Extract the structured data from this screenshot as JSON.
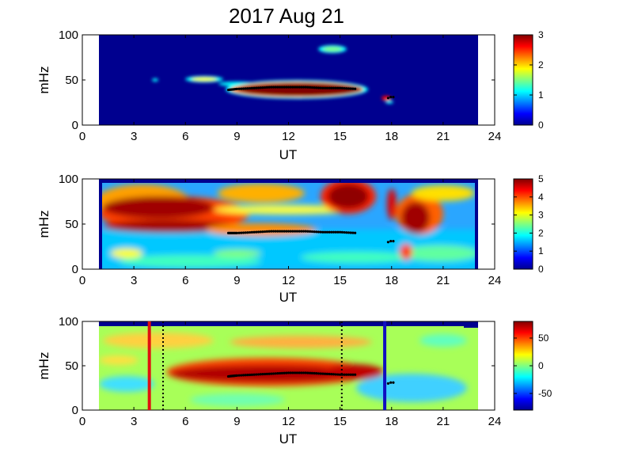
{
  "title": "2017 Aug 21",
  "colormap": [
    "#00008f",
    "#0000ff",
    "#0080ff",
    "#00ffff",
    "#80ff80",
    "#ffff00",
    "#ff8000",
    "#ff0000",
    "#800000"
  ],
  "chart_data": [
    {
      "type": "heatmap",
      "panel": "top",
      "xlabel": "UT",
      "ylabel": "mHz",
      "xlim": [
        0,
        24
      ],
      "ylim": [
        0,
        100
      ],
      "xticks": [
        "0",
        "3",
        "6",
        "9",
        "12",
        "15",
        "18",
        "21",
        "24"
      ],
      "yticks": [
        "0",
        "50",
        "100"
      ],
      "data_range_ut": [
        1,
        23
      ],
      "colorbar": {
        "min": 0,
        "max": 3,
        "ticks": [
          "0",
          "1",
          "2",
          "3"
        ]
      },
      "features": [
        {
          "ut": [
            8.5,
            16
          ],
          "freq": [
            35,
            45
          ],
          "level": "high"
        },
        {
          "ut": [
            6,
            8.5
          ],
          "freq": [
            48,
            55
          ],
          "level": "medium"
        },
        {
          "ut": [
            13.2,
            15
          ],
          "freq": [
            83,
            90
          ],
          "level": "medium"
        }
      ],
      "tracked_peak": {
        "ut": [
          8.5,
          9,
          10,
          11,
          12,
          13,
          14,
          15,
          16
        ],
        "freq": [
          39,
          40,
          41,
          42,
          42,
          42,
          41,
          41,
          40
        ]
      }
    },
    {
      "type": "heatmap",
      "panel": "middle",
      "xlabel": "UT",
      "ylabel": "mHz",
      "xlim": [
        0,
        24
      ],
      "ylim": [
        0,
        100
      ],
      "xticks": [
        "0",
        "3",
        "6",
        "9",
        "12",
        "15",
        "18",
        "21",
        "24"
      ],
      "yticks": [
        "0",
        "50",
        "100"
      ],
      "data_range_ut": [
        1,
        23
      ],
      "colorbar": {
        "min": 0,
        "max": 5,
        "ticks": [
          "0",
          "1",
          "2",
          "3",
          "4",
          "5"
        ]
      },
      "tracked_peak": {
        "ut": [
          8.5,
          9,
          10,
          11,
          12,
          13,
          14,
          15,
          16
        ],
        "freq": [
          40,
          40,
          41,
          42,
          42,
          42,
          41,
          41,
          40
        ]
      }
    },
    {
      "type": "heatmap",
      "panel": "bottom",
      "xlabel": "UT",
      "ylabel": "mHz",
      "xlim": [
        0,
        24
      ],
      "ylim": [
        0,
        100
      ],
      "xticks": [
        "0",
        "3",
        "6",
        "9",
        "12",
        "15",
        "18",
        "21",
        "24"
      ],
      "yticks": [
        "0",
        "50",
        "100"
      ],
      "data_range_ut": [
        1,
        23
      ],
      "colorbar": {
        "min": -80,
        "max": 80,
        "ticks": [
          "50",
          "0",
          "-50"
        ],
        "tick_values": [
          50,
          0,
          -50
        ]
      },
      "vertical_lines": [
        {
          "ut": 3.9,
          "color": "#e01010",
          "style": "solid"
        },
        {
          "ut": 4.7,
          "color": "#000000",
          "style": "dotted"
        },
        {
          "ut": 15.1,
          "color": "#000000",
          "style": "dotted"
        },
        {
          "ut": 17.6,
          "color": "#1010c0",
          "style": "solid"
        }
      ],
      "tracked_peak": {
        "ut": [
          8.5,
          9,
          10,
          11,
          12,
          13,
          14,
          15,
          16
        ],
        "freq": [
          38,
          39,
          40,
          41,
          42,
          42,
          41,
          40,
          40
        ]
      }
    }
  ]
}
